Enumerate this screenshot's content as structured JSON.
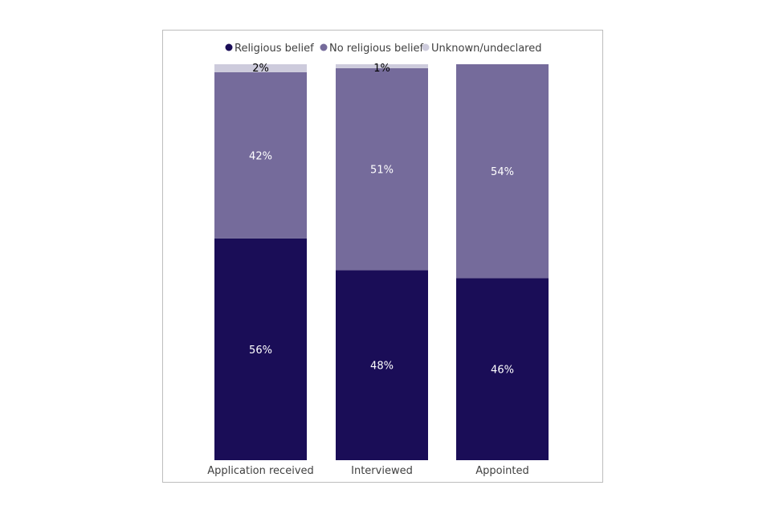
{
  "chart_data": {
    "type": "bar",
    "stacked": true,
    "orientation": "vertical",
    "title": "",
    "xlabel": "",
    "ylabel": "",
    "ylim": [
      0,
      100
    ],
    "grid": false,
    "legend_position": "top",
    "categories": [
      "Application received",
      "Interviewed",
      "Appointed"
    ],
    "series": [
      {
        "name": "Religious belief",
        "color": "#1a0d57",
        "values": [
          56,
          48,
          46
        ],
        "labels": [
          "56%",
          "48%",
          "46%"
        ],
        "label_color": "#ffffff"
      },
      {
        "name": "No religious belief",
        "color": "#756b9b",
        "values": [
          42,
          51,
          54
        ],
        "labels": [
          "42%",
          "51%",
          "54%"
        ],
        "label_color": "#ffffff"
      },
      {
        "name": "Unknown/undeclared",
        "color": "#cdcbdc",
        "values": [
          2,
          1,
          0
        ],
        "labels": [
          "2%",
          "1%",
          ""
        ],
        "label_color": "#000000"
      }
    ]
  }
}
